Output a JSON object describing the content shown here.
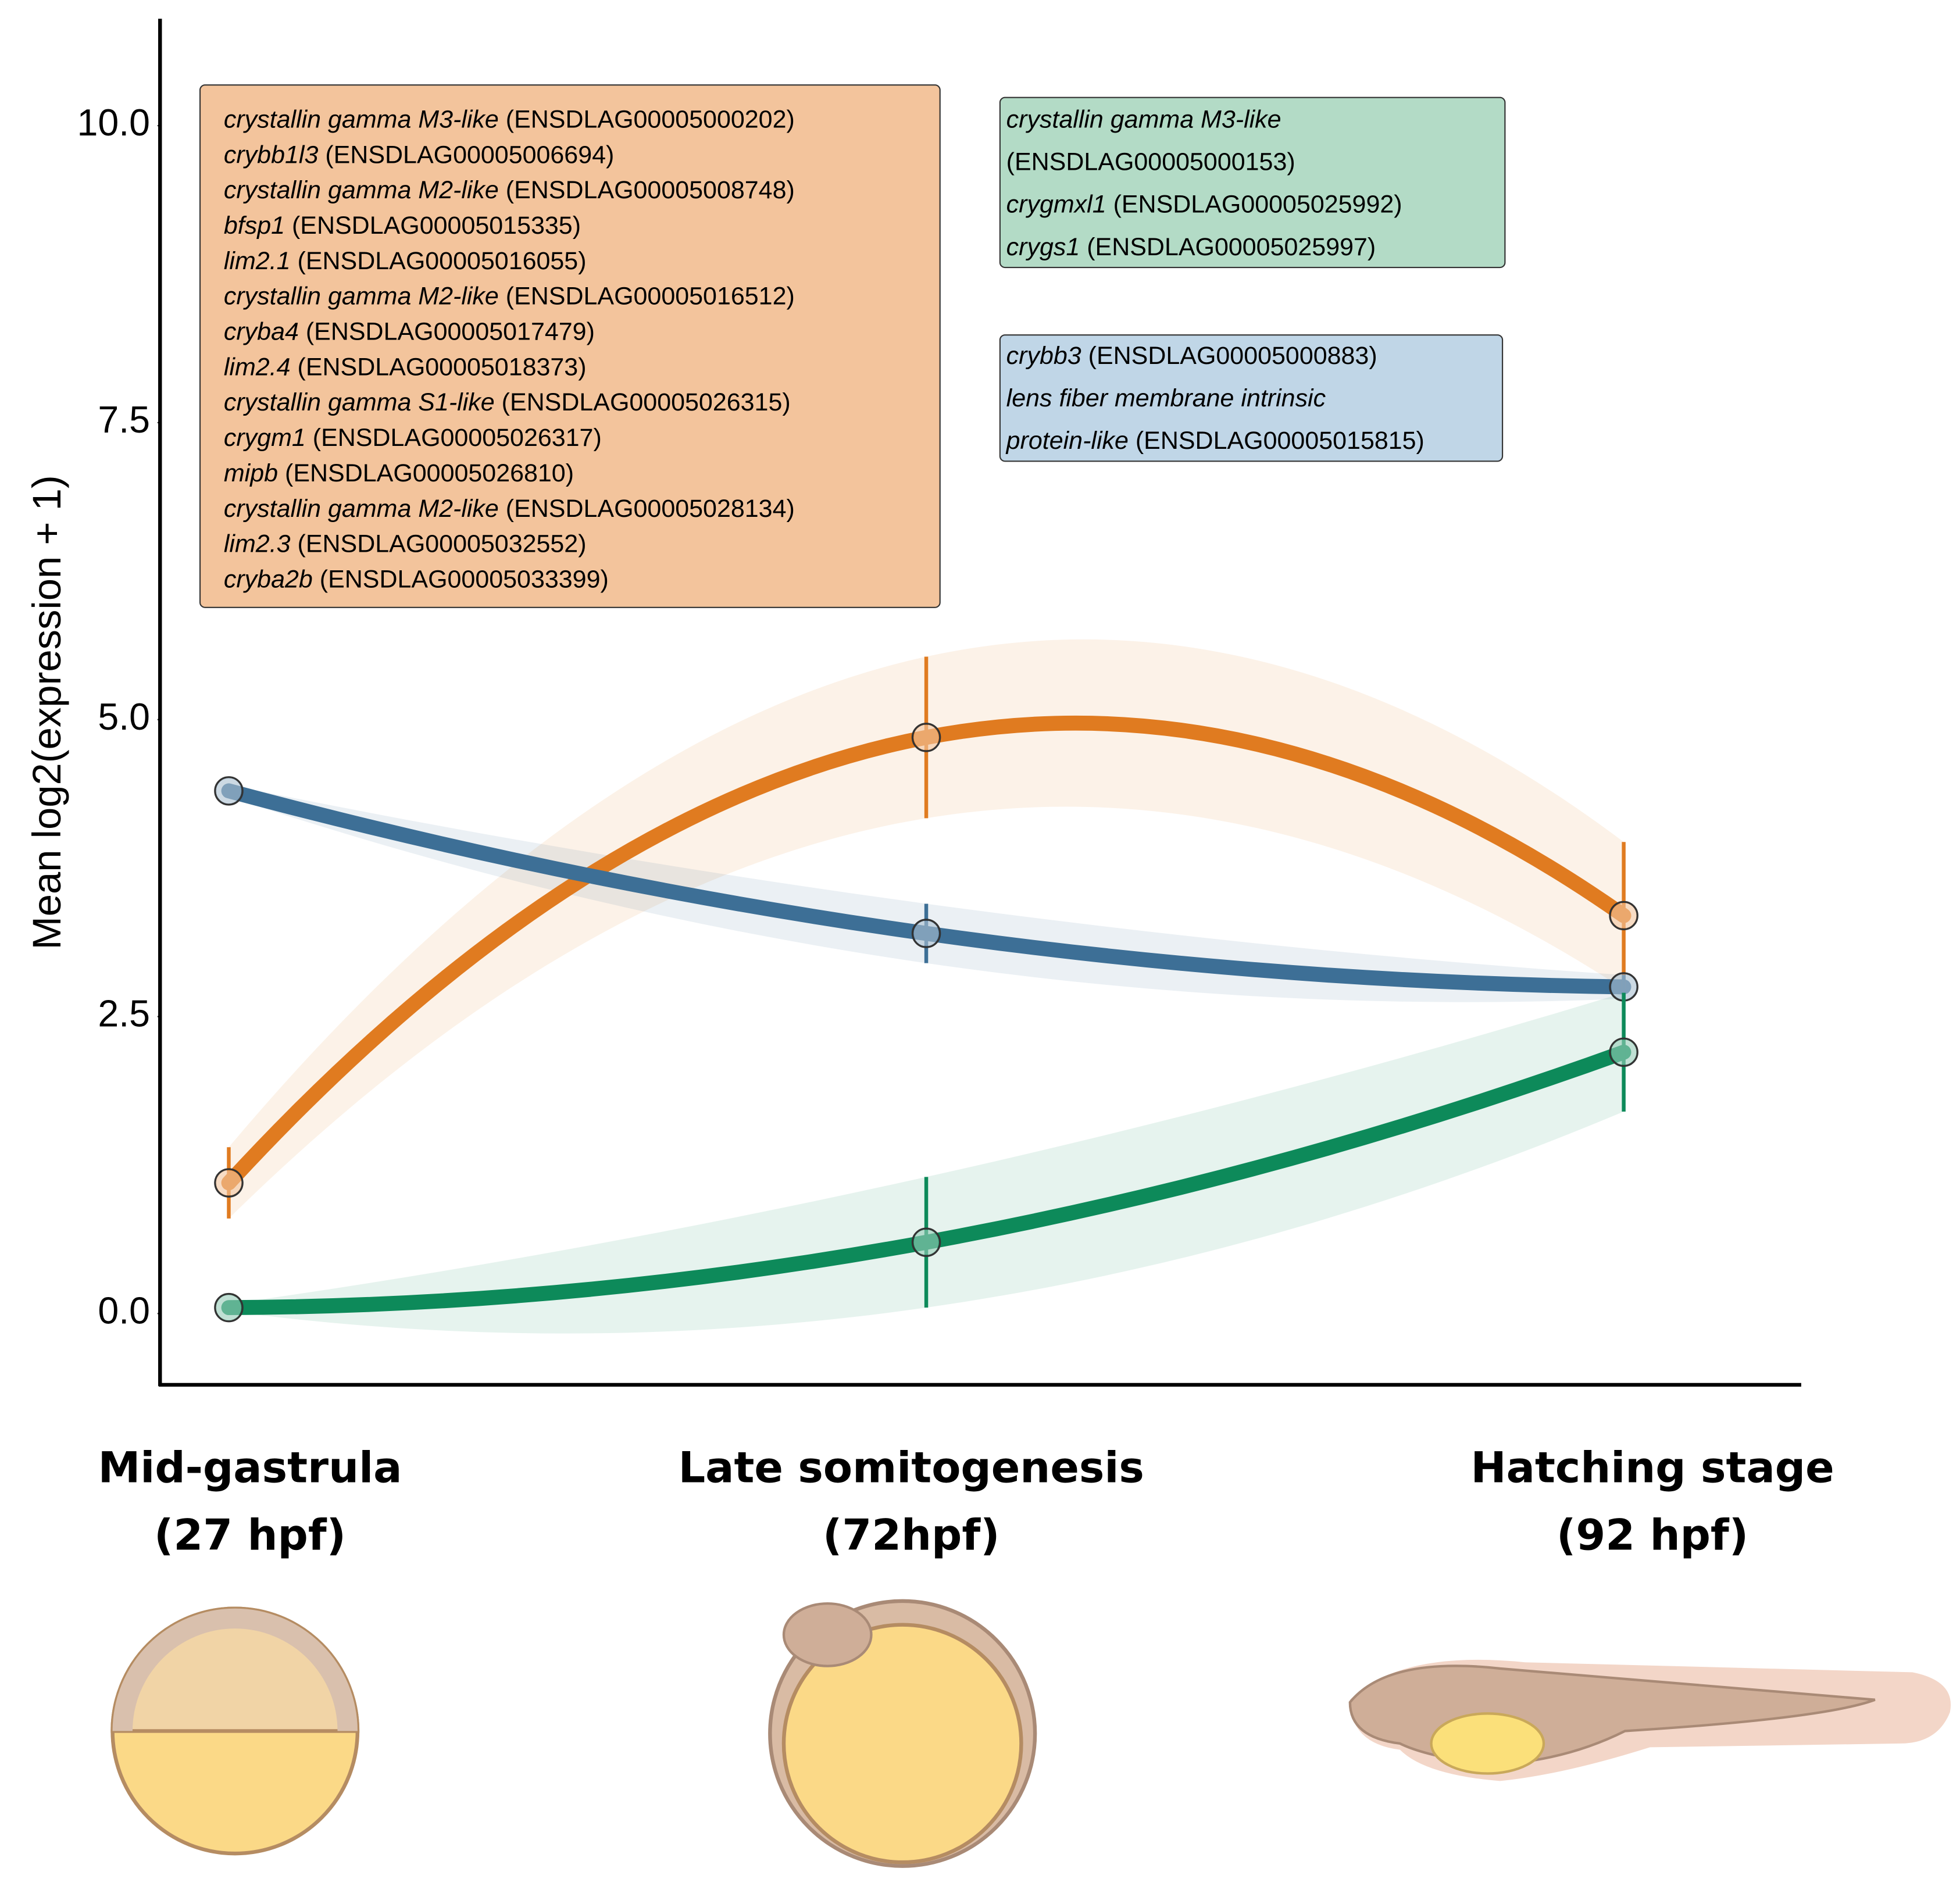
{
  "chart_data": {
    "type": "line",
    "y_label": "Mean log2(expression + 1)",
    "categories": [
      "Mid-gastrula",
      "Late somitogenesis",
      "Hatching stage"
    ],
    "category_sublabels": [
      "(27 hpf)",
      "(72hpf)",
      "(92 hpf)"
    ],
    "series": [
      {
        "color": "#e07b20",
        "values": [
          1.1,
          4.85,
          3.35
        ],
        "errors": [
          0.3,
          0.68,
          0.62
        ]
      },
      {
        "color": "#3d6f96",
        "values": [
          4.4,
          3.2,
          2.75
        ],
        "errors": [
          0.05,
          0.25,
          0.1
        ]
      },
      {
        "color": "#0d8a5a",
        "values": [
          0.05,
          0.6,
          2.2
        ],
        "errors": [
          0.03,
          0.55,
          0.5
        ]
      }
    ],
    "ylim": [
      -0.6,
      10.9
    ],
    "yticks": [
      {
        "value": 0,
        "label": "0.0"
      },
      2.5,
      {
        "value": 5,
        "label": "5.0"
      },
      7.5,
      {
        "value": 10,
        "label": "10.0"
      }
    ],
    "annotations": [
      {
        "color": "#f3c49c",
        "lines": [
          {
            "gene": "crystallin gamma M3-like",
            "id": "(ENSDLAG00005000202)"
          },
          {
            "gene": "crybb1l3",
            "id": "(ENSDLAG00005006694)"
          },
          {
            "gene": "crystallin gamma M2-like",
            "id": "(ENSDLAG00005008748)"
          },
          {
            "gene": "bfsp1",
            "id": "(ENSDLAG00005015335)"
          },
          {
            "gene": "lim2.1",
            "id": "(ENSDLAG00005016055)"
          },
          {
            "gene": "crystallin gamma M2-like",
            "id": "(ENSDLAG00005016512)"
          },
          {
            "gene": "cryba4",
            "id": "(ENSDLAG00005017479)"
          },
          {
            "gene": "lim2.4",
            "id": "(ENSDLAG00005018373)"
          },
          {
            "gene": "crystallin gamma S1-like",
            "id": "(ENSDLAG00005026315)"
          },
          {
            "gene": "crygm1",
            "id": "(ENSDLAG00005026317)"
          },
          {
            "gene": "mipb",
            "id": "(ENSDLAG00005026810)"
          },
          {
            "gene": "crystallin gamma M2-like",
            "id": "(ENSDLAG00005028134)"
          },
          {
            "gene": "lim2.3",
            "id": "(ENSDLAG00005032552)"
          },
          {
            "gene": "cryba2b",
            "id": "(ENSDLAG00005033399)"
          }
        ]
      },
      {
        "color": "#b3dbc6",
        "lines": [
          {
            "gene": "crystallin gamma M3-like"
          },
          {
            "id": "(ENSDLAG00005000153)"
          },
          {
            "gene": "crygmxl1",
            "id": "(ENSDLAG00005025992)"
          },
          {
            "gene": "crygs1",
            "id": "(ENSDLAG00005025997)"
          }
        ]
      },
      {
        "color": "#c0d6e7",
        "lines": [
          {
            "gene": "crybb3",
            "id": "(ENSDLAG00005000883)"
          },
          {
            "gene": "lens fiber membrane intrinsic"
          },
          {
            "gene": "protein-like",
            "id": "(ENSDLAG00005015815)"
          }
        ]
      }
    ]
  }
}
